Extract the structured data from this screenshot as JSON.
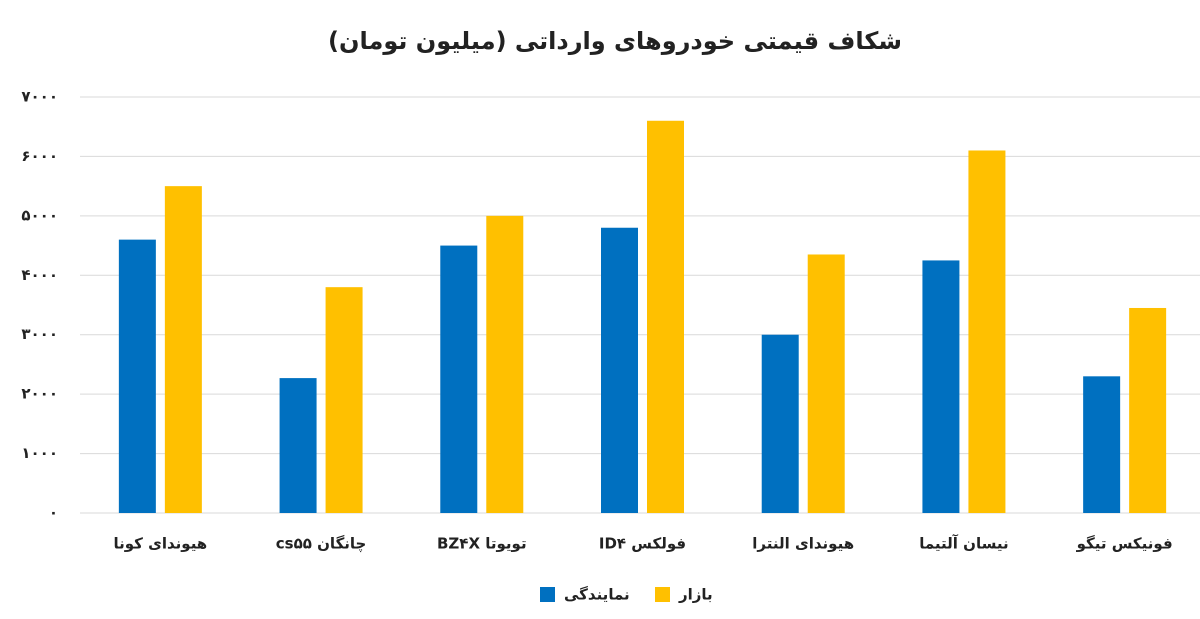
{
  "chart_data": {
    "type": "bar",
    "title": "شکاف قیمتی خودروهای وارداتی (میلیون تومان)",
    "categories": [
      "هیوندای کونا",
      "چانگان cs۵۵",
      "تویوتا  BZ۴X",
      "فولکس ID۴",
      "هیوندای النترا",
      "نیسان آلتیما",
      "فونیکس تیگو"
    ],
    "series": [
      {
        "name": "نمایندگی",
        "color": "#0070c0",
        "values": [
          4600,
          2270,
          4500,
          4800,
          3000,
          4250,
          2300
        ]
      },
      {
        "name": "بازار",
        "color": "#ffc000",
        "values": [
          5500,
          3800,
          5000,
          6600,
          4350,
          6100,
          3450
        ]
      }
    ],
    "ylim": [
      0,
      7000
    ],
    "yticks": [
      {
        "value": 0,
        "label": "۰"
      },
      {
        "value": 1000,
        "label": "۱۰۰۰"
      },
      {
        "value": 2000,
        "label": "۲۰۰۰"
      },
      {
        "value": 3000,
        "label": "۳۰۰۰"
      },
      {
        "value": 4000,
        "label": "۴۰۰۰"
      },
      {
        "value": 5000,
        "label": "۵۰۰۰"
      },
      {
        "value": 6000,
        "label": "۶۰۰۰"
      },
      {
        "value": 7000,
        "label": "۷۰۰۰"
      }
    ],
    "grid": true,
    "legend": "bottom"
  }
}
